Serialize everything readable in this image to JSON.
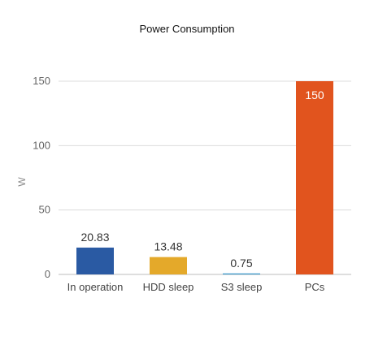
{
  "chart_data": {
    "type": "bar",
    "title": "Power Consumption",
    "xlabel": "",
    "ylabel": "W",
    "ylim": [
      0,
      150
    ],
    "yticks": [
      0,
      50,
      100,
      150
    ],
    "grid": true,
    "categories": [
      "In operation",
      "HDD sleep",
      "S3 sleep",
      "PCs"
    ],
    "values": [
      20.83,
      13.48,
      0.75,
      150
    ],
    "value_labels": [
      "20.83",
      "13.48",
      "0.75",
      "150"
    ],
    "colors": [
      "#2a5aa3",
      "#e4a92a",
      "#2e93c7",
      "#e1541e"
    ]
  }
}
